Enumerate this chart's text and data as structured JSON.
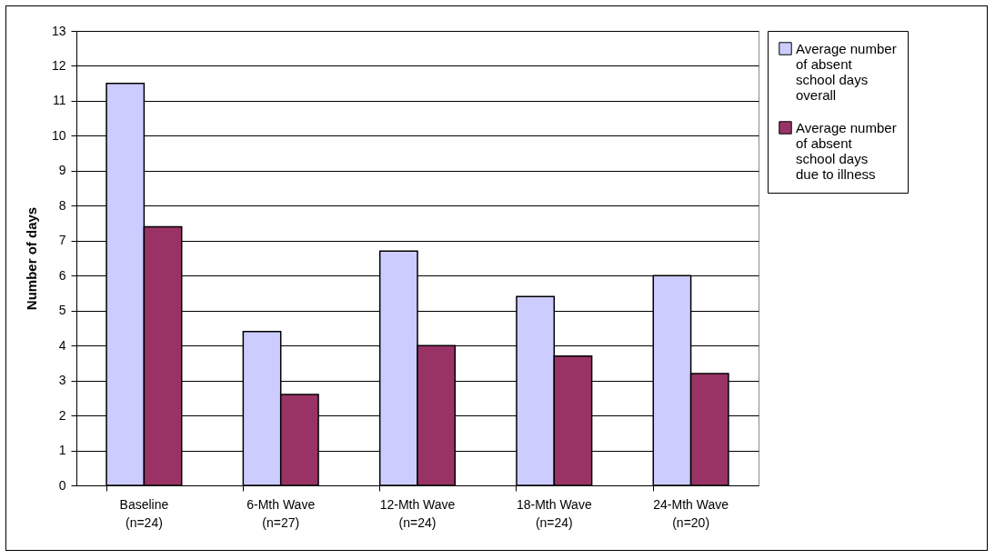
{
  "chart_data": {
    "type": "bar",
    "ylabel": "Number of days",
    "categories": [
      "Baseline\n(n=24)",
      "6-Mth Wave\n(n=27)",
      "12-Mth Wave\n(n=24)",
      "18-Mth Wave\n(n=24)",
      "24-Mth Wave\n(n=20)"
    ],
    "series": [
      {
        "name": "Average number of absent school days overall",
        "color": "#ccccff",
        "values": [
          11.5,
          4.4,
          6.7,
          5.4,
          6.0
        ]
      },
      {
        "name": "Average number of absent school days due to illness",
        "color": "#993366",
        "values": [
          7.4,
          2.6,
          4.0,
          3.7,
          3.2
        ]
      }
    ],
    "ylim": [
      0,
      13
    ],
    "yticks": [
      0,
      1,
      2,
      3,
      4,
      5,
      6,
      7,
      8,
      9,
      10,
      11,
      12,
      13
    ],
    "grid": "y",
    "legend": "right"
  }
}
